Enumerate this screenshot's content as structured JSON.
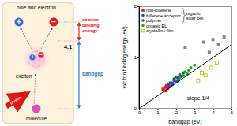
{
  "diagram": {
    "title": "hole and electron",
    "hole": "+",
    "electron": "−",
    "exciton": "exciton",
    "photon": "photon",
    "molecule": "molecule",
    "ratio": "4:1",
    "binding_energy": "exciton binding energy",
    "bandgap": "bandgap"
  },
  "chart_data": {
    "type": "scatter",
    "xlabel": "bandgap (eV)",
    "ylabel": "exciton binding energy (eV)",
    "xlim": [
      0,
      5
    ],
    "xticks": [
      0,
      1,
      2,
      3,
      4,
      5
    ],
    "ylim": [
      0,
      2
    ],
    "yticks": [
      0,
      1,
      2
    ],
    "legend": "upper left",
    "annotations": [
      {
        "text": "slope 1/4"
      },
      {
        "text": "organic solar cell",
        "series": [
          0,
          1,
          2
        ]
      }
    ],
    "series": [
      {
        "name": "non-fullerene",
        "color": "#e02020",
        "marker": "square",
        "x": [
          1.3,
          1.4,
          1.45,
          1.5,
          1.55,
          1.6,
          1.65,
          1.7
        ],
        "values": [
          0.38,
          0.42,
          0.35,
          0.45,
          0.4,
          0.48,
          0.43,
          0.5
        ]
      },
      {
        "name": "fullerene acceptor",
        "color": "#1f4fd0",
        "marker": "circle",
        "x": [
          1.6,
          1.7,
          1.8,
          1.9,
          2.0,
          2.1
        ],
        "values": [
          0.45,
          0.5,
          0.47,
          0.55,
          0.52,
          0.6
        ]
      },
      {
        "name": "polymer",
        "color": "#1a5e5e",
        "marker": "circle",
        "x": [
          1.8,
          1.9,
          2.0,
          2.1,
          2.2,
          2.3,
          2.4
        ],
        "values": [
          0.5,
          0.58,
          0.62,
          0.55,
          0.66,
          0.63,
          0.7
        ]
      },
      {
        "name": "organic EL",
        "color": "#2ca02c",
        "marker": "circle",
        "x": [
          2.2,
          2.4,
          2.5,
          2.6,
          2.7,
          2.8,
          3.0
        ],
        "values": [
          0.6,
          0.65,
          0.72,
          0.68,
          0.75,
          0.8,
          0.85
        ]
      },
      {
        "name": "crystalline film",
        "color": "#b5c900",
        "marker": "open-square",
        "x": [
          3.2,
          3.4,
          3.6,
          3.9,
          4.2
        ],
        "values": [
          0.55,
          0.7,
          0.65,
          0.8,
          0.9
        ]
      },
      {
        "color": "#888888",
        "marker": "square",
        "x": [
          2.5,
          3.5,
          3.8,
          4.0,
          4.3,
          4.6
        ],
        "values": [
          1.2,
          1.3,
          1.1,
          1.35,
          1.25,
          1.4
        ]
      },
      {
        "type": "line",
        "color": "#000000",
        "line_style": "solid",
        "x": [
          0,
          5
        ],
        "values": [
          0,
          1.25
        ]
      }
    ]
  }
}
